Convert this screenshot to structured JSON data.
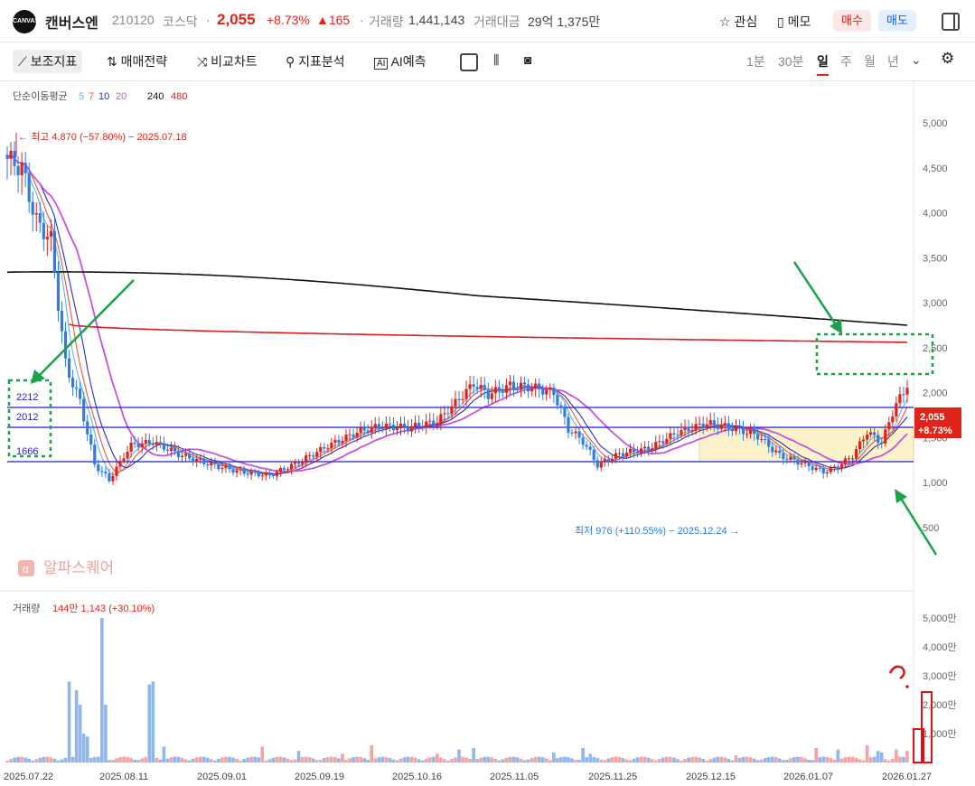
{
  "header": {
    "logo_text": "CANVAS",
    "stock_name": "캔버스엔",
    "stock_code": "210120",
    "market": "코스닥",
    "price": "2,055",
    "change_pct": "+8.73%",
    "change_amt": "▲165",
    "volume_label": "거래량",
    "volume_value": "1,441,143",
    "amount_label": "거래대금",
    "amount_value": "29억 1,375만",
    "watch_label": "관심",
    "memo_label": "메모",
    "buy_label": "매수",
    "sell_label": "매도"
  },
  "toolbar": {
    "indicator_label": "보조지표",
    "strategy_label": "매매전략",
    "compare_label": "비교차트",
    "analysis_label": "지표분석",
    "ai_label": "AI예측",
    "timeframes": [
      "1분",
      "30분",
      "일",
      "주",
      "월",
      "년"
    ],
    "active_timeframe": "일"
  },
  "colors": {
    "up": "#e2231a",
    "down": "#2f7de1",
    "ma5": "#5bb8e6",
    "ma7": "#e8553d",
    "ma10": "#2b2fbf",
    "ma20": "#c94fe0",
    "ma240": "#111111",
    "ma480": "#d61f1f",
    "level_line": "#1f1fd6",
    "box_fill": "#fbedb5",
    "annotation": "#1aa34a",
    "vol_up": "#f4a3a3",
    "vol_down": "#8fb6ee"
  },
  "chart_data": {
    "type": "candlestick",
    "ma_legend": {
      "title": "단순이동평균",
      "periods": [
        "5",
        "7",
        "10",
        "20",
        "240",
        "480"
      ]
    },
    "y_ticks": [
      "5,000",
      "4,500",
      "4,000",
      "3,500",
      "3,000",
      "2,500",
      "2,000",
      "1,500",
      "1,000",
      "500"
    ],
    "y_range": [
      500,
      5000
    ],
    "x_ticks": [
      "2025.07.22",
      "2025.08.11",
      "2025.09.01",
      "2025.09.19",
      "2025.10.16",
      "2025.11.05",
      "2025.11.25",
      "2025.12.15",
      "2026.01.07",
      "2026.01.27"
    ],
    "high_label": "최고 4,870 (−57.80%) − 2025.07.18",
    "low_label": "최저 976 (+110.55%) − 2025.12.24",
    "last_price_label": "2,055",
    "last_change_label": "+8.73%",
    "level_labels": [
      "2212",
      "2012",
      "1666"
    ],
    "levels": [
      2212,
      2012,
      1666
    ],
    "watermark": "알파스퀘어",
    "ma240_value_at_end": 2750,
    "ma480_value_at_end": 2560,
    "volume": {
      "title": "거래량",
      "value_label": "144만 1,143 (+30.10%)",
      "y_ticks": [
        "5,000만",
        "4,000만",
        "3,000만",
        "2,000만",
        "1,000만"
      ]
    },
    "handwritten_note": "?"
  }
}
